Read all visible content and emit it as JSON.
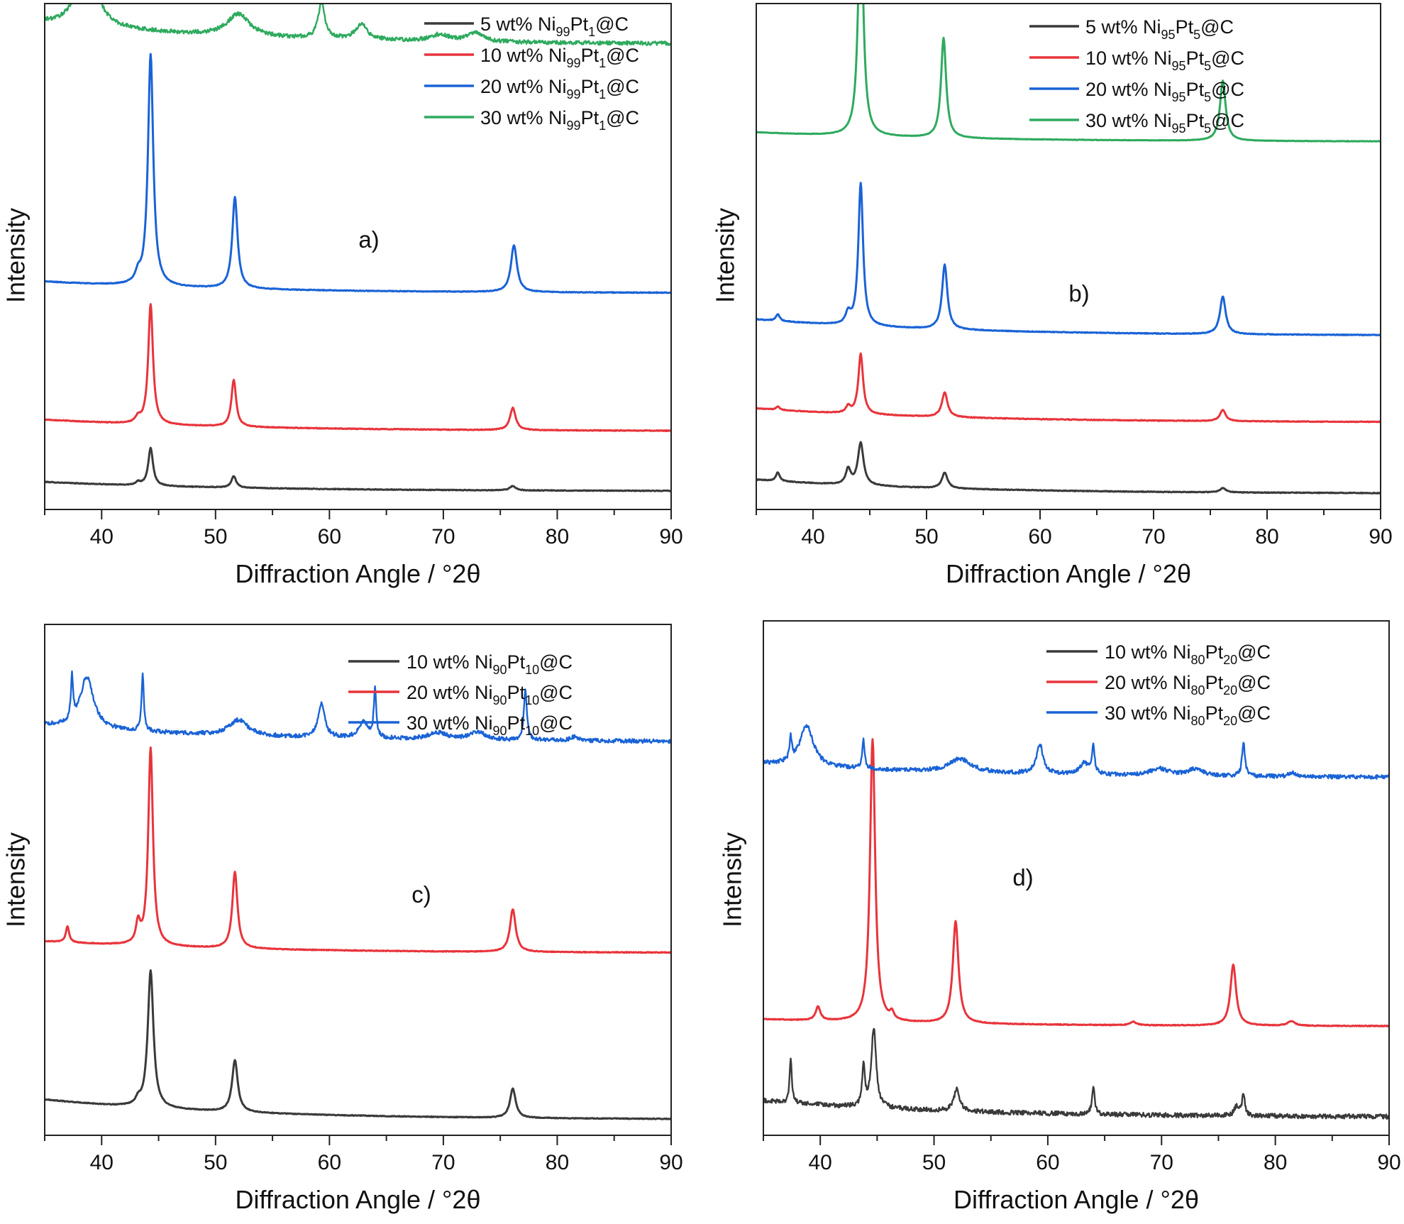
{
  "figure": {
    "colors": {
      "black": "#3a3a3a",
      "red": "#e8343b",
      "blue": "#1a63d6",
      "green": "#2eaa5e"
    },
    "panels": [
      {
        "label": "a)",
        "xlabel": "Diffraction Angle  /  °2θ",
        "ylabel": "Intensity",
        "legend": [
          {
            "wt": "5 wt%",
            "a": "Ni",
            "a_sub": "99",
            "b": "Pt",
            "b_sub": "1",
            "tail": "@C",
            "color": "#3a3a3a"
          },
          {
            "wt": "10 wt%",
            "a": "Ni",
            "a_sub": "99",
            "b": "Pt",
            "b_sub": "1",
            "tail": "@C",
            "color": "#e8343b"
          },
          {
            "wt": "20 wt%",
            "a": "Ni",
            "a_sub": "99",
            "b": "Pt",
            "b_sub": "1",
            "tail": "@C",
            "color": "#1a63d6"
          },
          {
            "wt": "30 wt%",
            "a": "Ni",
            "a_sub": "99",
            "b": "Pt",
            "b_sub": "1",
            "tail": "@C",
            "color": "#2eaa5e"
          }
        ]
      },
      {
        "label": "b)",
        "xlabel": "Diffraction Angle  /  °2θ",
        "ylabel": "Intensity",
        "legend": [
          {
            "wt": "5 wt%",
            "a": "Ni",
            "a_sub": "95",
            "b": "Pt",
            "b_sub": "5",
            "tail": "@C",
            "color": "#3a3a3a"
          },
          {
            "wt": "10 wt%",
            "a": "Ni",
            "a_sub": "95",
            "b": "Pt",
            "b_sub": "5",
            "tail": "@C",
            "color": "#e8343b"
          },
          {
            "wt": "20 wt%",
            "a": "Ni",
            "a_sub": "95",
            "b": "Pt",
            "b_sub": "5",
            "tail": "@C",
            "color": "#1a63d6"
          },
          {
            "wt": "30 wt%",
            "a": "Ni",
            "a_sub": "95",
            "b": "Pt",
            "b_sub": "5",
            "tail": "@C",
            "color": "#2eaa5e"
          }
        ]
      },
      {
        "label": "c)",
        "xlabel": "Diffraction Angle  /  °2θ",
        "ylabel": "Intensity",
        "legend": [
          {
            "wt": "10 wt%",
            "a": "Ni",
            "a_sub": "90",
            "b": "Pt",
            "b_sub": "10",
            "tail": "@C",
            "color": "#3a3a3a"
          },
          {
            "wt": "20 wt%",
            "a": "Ni",
            "a_sub": "90",
            "b": "Pt",
            "b_sub": "10",
            "tail": "@C",
            "color": "#e8343b"
          },
          {
            "wt": "30 wt%",
            "a": "Ni",
            "a_sub": "90",
            "b": "Pt",
            "b_sub": "10",
            "tail": "@C",
            "color": "#1a63d6"
          }
        ]
      },
      {
        "label": "d)",
        "xlabel": "Diffraction Angle  /  °2θ",
        "ylabel": "Intensity",
        "legend": [
          {
            "wt": "10 wt%",
            "a": "Ni",
            "a_sub": "80",
            "b": "Pt",
            "b_sub": "20",
            "tail": "@C",
            "color": "#3a3a3a"
          },
          {
            "wt": "20 wt%",
            "a": "Ni",
            "a_sub": "80",
            "b": "Pt",
            "b_sub": "20",
            "tail": "@C",
            "color": "#e8343b"
          },
          {
            "wt": "30 wt%",
            "a": "Ni",
            "a_sub": "80",
            "b": "Pt",
            "b_sub": "20",
            "tail": "@C",
            "color": "#1a63d6"
          }
        ]
      }
    ]
  },
  "chart_data": [
    {
      "type": "line",
      "panel": "a)",
      "xlabel": "Diffraction Angle  /  °2θ",
      "ylabel": "Intensity",
      "xlim": [
        35,
        90
      ],
      "ylim": [
        0,
        100
      ],
      "xticks": [
        40,
        50,
        60,
        70,
        80,
        90
      ],
      "y_tick_labels": false,
      "grid": false,
      "legend_position": "top-right",
      "series": [
        {
          "name": "5 wt% Ni99Pt1@C",
          "color": "#3a3a3a",
          "baseline_start": 3.0,
          "baseline_end": 1.0,
          "noise": 0.08,
          "peaks": [
            {
              "x": 43.2,
              "h": 0.7,
              "w": 0.25
            },
            {
              "x": 44.3,
              "h": 8.5,
              "w": 0.25
            },
            {
              "x": 51.6,
              "h": 2.6,
              "w": 0.25
            },
            {
              "x": 76.1,
              "h": 1.0,
              "w": 0.3
            }
          ]
        },
        {
          "name": "10 wt% Ni99Pt1@C",
          "color": "#e8343b",
          "baseline_start": 17.0,
          "baseline_end": 14.5,
          "noise": 0.08,
          "peaks": [
            {
              "x": 43.2,
              "h": 1.2,
              "w": 0.25
            },
            {
              "x": 44.3,
              "h": 27.0,
              "w": 0.25
            },
            {
              "x": 51.6,
              "h": 10.5,
              "w": 0.25
            },
            {
              "x": 76.1,
              "h": 5.0,
              "w": 0.3
            }
          ]
        },
        {
          "name": "20 wt% Ni99Pt1@C",
          "color": "#1a63d6",
          "baseline_start": 48.0,
          "baseline_end": 45.5,
          "noise": 0.08,
          "peaks": [
            {
              "x": 43.2,
              "h": 2.0,
              "w": 0.25
            },
            {
              "x": 44.3,
              "h": 52.0,
              "w": 0.28
            },
            {
              "x": 51.7,
              "h": 20.5,
              "w": 0.28
            },
            {
              "x": 76.2,
              "h": 10.5,
              "w": 0.32
            }
          ]
        },
        {
          "name": "30 wt% Ni99Pt1@C",
          "color": "#2eaa5e",
          "baseline_start": 106.0,
          "baseline_end": 101.5,
          "noise": 0.45,
          "peaks": [
            {
              "x": 38.7,
              "h": 17.0,
              "w": 0.9
            },
            {
              "x": 52.0,
              "h": 5.0,
              "w": 1.2
            },
            {
              "x": 59.3,
              "h": 8.0,
              "w": 0.35
            },
            {
              "x": 62.8,
              "h": 3.5,
              "w": 0.6
            },
            {
              "x": 69.7,
              "h": 1.5,
              "w": 1.0
            },
            {
              "x": 72.8,
              "h": 2.0,
              "w": 0.8
            }
          ]
        }
      ]
    },
    {
      "type": "line",
      "panel": "b)",
      "xlabel": "Diffraction Angle  /  °2θ",
      "ylabel": "Intensity",
      "xlim": [
        35,
        90
      ],
      "ylim": [
        0,
        100
      ],
      "xticks": [
        40,
        50,
        60,
        70,
        80,
        90
      ],
      "y_tick_labels": false,
      "grid": false,
      "legend_position": "top-right",
      "series": [
        {
          "name": "5 wt% Ni95Pt5@C",
          "color": "#3a3a3a",
          "baseline_start": 3.5,
          "baseline_end": 0.5,
          "noise": 0.08,
          "peaks": [
            {
              "x": 36.9,
              "h": 2.0,
              "w": 0.2
            },
            {
              "x": 43.1,
              "h": 3.5,
              "w": 0.25
            },
            {
              "x": 44.2,
              "h": 9.5,
              "w": 0.3
            },
            {
              "x": 51.6,
              "h": 3.5,
              "w": 0.3
            },
            {
              "x": 76.1,
              "h": 1.0,
              "w": 0.3
            }
          ]
        },
        {
          "name": "10 wt% Ni95Pt5@C",
          "color": "#e8343b",
          "baseline_start": 19.5,
          "baseline_end": 16.5,
          "noise": 0.08,
          "peaks": [
            {
              "x": 36.9,
              "h": 0.8,
              "w": 0.2
            },
            {
              "x": 43.1,
              "h": 1.5,
              "w": 0.25
            },
            {
              "x": 44.2,
              "h": 13.5,
              "w": 0.25
            },
            {
              "x": 51.6,
              "h": 5.5,
              "w": 0.3
            },
            {
              "x": 76.1,
              "h": 2.5,
              "w": 0.3
            }
          ]
        },
        {
          "name": "20 wt% Ni95Pt5@C",
          "color": "#1a63d6",
          "baseline_start": 39.5,
          "baseline_end": 36.0,
          "noise": 0.08,
          "peaks": [
            {
              "x": 36.9,
              "h": 1.5,
              "w": 0.2
            },
            {
              "x": 43.1,
              "h": 2.5,
              "w": 0.25
            },
            {
              "x": 44.2,
              "h": 32.0,
              "w": 0.25
            },
            {
              "x": 51.6,
              "h": 14.5,
              "w": 0.28
            },
            {
              "x": 76.1,
              "h": 8.5,
              "w": 0.3
            }
          ]
        },
        {
          "name": "30 wt% Ni95Pt5@C",
          "color": "#2eaa5e",
          "baseline_start": 81.5,
          "baseline_end": 79.5,
          "noise": 0.05,
          "peaks": [
            {
              "x": 44.2,
              "h": 52.0,
              "w": 0.27
            },
            {
              "x": 51.5,
              "h": 22.5,
              "w": 0.27
            },
            {
              "x": 76.1,
              "h": 13.5,
              "w": 0.3
            }
          ]
        }
      ]
    },
    {
      "type": "line",
      "panel": "c)",
      "xlabel": "Diffraction Angle  /  °2θ",
      "ylabel": "Intensity",
      "xlim": [
        35,
        90
      ],
      "ylim": [
        0,
        100
      ],
      "xticks": [
        40,
        50,
        60,
        70,
        80,
        90
      ],
      "y_tick_labels": false,
      "grid": false,
      "legend_position": "top-right",
      "series": [
        {
          "name": "10 wt% Ni90Pt10@C",
          "color": "#3a3a3a",
          "baseline_start": 4.8,
          "baseline_end": 0.5,
          "noise": 0.08,
          "peaks": [
            {
              "x": 43.2,
              "h": 1.2,
              "w": 0.25
            },
            {
              "x": 44.3,
              "h": 30.5,
              "w": 0.3
            },
            {
              "x": 51.7,
              "h": 11.5,
              "w": 0.3
            },
            {
              "x": 76.1,
              "h": 6.5,
              "w": 0.3
            }
          ]
        },
        {
          "name": "20 wt% Ni90Pt10@C",
          "color": "#e8343b",
          "baseline_start": 40.0,
          "baseline_end": 37.5,
          "noise": 0.08,
          "peaks": [
            {
              "x": 37.0,
              "h": 3.5,
              "w": 0.18
            },
            {
              "x": 43.2,
              "h": 4.5,
              "w": 0.22
            },
            {
              "x": 44.3,
              "h": 44.0,
              "w": 0.25
            },
            {
              "x": 51.7,
              "h": 17.0,
              "w": 0.27
            },
            {
              "x": 76.1,
              "h": 9.5,
              "w": 0.3
            }
          ]
        },
        {
          "name": "30 wt% Ni90Pt10@C",
          "color": "#1a63d6",
          "baseline_start": 88.0,
          "baseline_end": 84.5,
          "noise": 0.45,
          "peaks": [
            {
              "x": 37.4,
              "h": 9.5,
              "w": 0.12
            },
            {
              "x": 38.7,
              "h": 11.5,
              "w": 0.7
            },
            {
              "x": 43.6,
              "h": 12.5,
              "w": 0.12
            },
            {
              "x": 52.0,
              "h": 3.5,
              "w": 1.0
            },
            {
              "x": 59.3,
              "h": 7.5,
              "w": 0.35
            },
            {
              "x": 63.0,
              "h": 3.5,
              "w": 0.5
            },
            {
              "x": 64.0,
              "h": 10.5,
              "w": 0.13
            },
            {
              "x": 69.5,
              "h": 1.5,
              "w": 1.0
            },
            {
              "x": 73.0,
              "h": 1.8,
              "w": 0.8
            },
            {
              "x": 77.2,
              "h": 11.5,
              "w": 0.15
            },
            {
              "x": 81.5,
              "h": 0.9,
              "w": 0.4
            }
          ]
        }
      ]
    },
    {
      "type": "line",
      "panel": "d)",
      "xlabel": "Diffraction Angle  /  °2θ",
      "ylabel": "Intensity",
      "xlim": [
        35,
        90
      ],
      "ylim": [
        0,
        100
      ],
      "xticks": [
        40,
        50,
        60,
        70,
        80,
        90
      ],
      "y_tick_labels": false,
      "grid": false,
      "legend_position": "top-right",
      "series": [
        {
          "name": "10 wt% Ni80Pt20@C",
          "color": "#3a3a3a",
          "baseline_start": 4.5,
          "baseline_end": 1.0,
          "noise": 0.5,
          "peaks": [
            {
              "x": 37.4,
              "h": 9.5,
              "w": 0.12
            },
            {
              "x": 43.8,
              "h": 9.0,
              "w": 0.14
            },
            {
              "x": 44.7,
              "h": 17.5,
              "w": 0.25
            },
            {
              "x": 52.0,
              "h": 5.0,
              "w": 0.3
            },
            {
              "x": 64.0,
              "h": 6.5,
              "w": 0.13
            },
            {
              "x": 76.6,
              "h": 2.0,
              "w": 0.25
            },
            {
              "x": 77.2,
              "h": 4.5,
              "w": 0.15
            }
          ]
        },
        {
          "name": "20 wt% Ni80Pt20@C",
          "color": "#e8343b",
          "baseline_start": 22.5,
          "baseline_end": 21.0,
          "noise": 0.08,
          "peaks": [
            {
              "x": 39.8,
              "h": 3.0,
              "w": 0.25
            },
            {
              "x": 44.6,
              "h": 62.5,
              "w": 0.27
            },
            {
              "x": 46.3,
              "h": 1.5,
              "w": 0.2
            },
            {
              "x": 51.9,
              "h": 22.5,
              "w": 0.3
            },
            {
              "x": 67.5,
              "h": 0.8,
              "w": 0.3
            },
            {
              "x": 76.3,
              "h": 13.5,
              "w": 0.3
            },
            {
              "x": 81.4,
              "h": 1.0,
              "w": 0.4
            }
          ]
        },
        {
          "name": "30 wt% Ni80Pt20@C",
          "color": "#1a63d6",
          "baseline_start": 79.0,
          "baseline_end": 76.0,
          "noise": 0.45,
          "peaks": [
            {
              "x": 37.4,
              "h": 5.0,
              "w": 0.12
            },
            {
              "x": 38.8,
              "h": 9.0,
              "w": 0.7
            },
            {
              "x": 43.8,
              "h": 6.5,
              "w": 0.12
            },
            {
              "x": 52.3,
              "h": 3.0,
              "w": 1.2
            },
            {
              "x": 59.3,
              "h": 6.5,
              "w": 0.35
            },
            {
              "x": 63.2,
              "h": 2.5,
              "w": 0.5
            },
            {
              "x": 64.0,
              "h": 6.0,
              "w": 0.13
            },
            {
              "x": 69.8,
              "h": 1.5,
              "w": 1.0
            },
            {
              "x": 73.0,
              "h": 1.5,
              "w": 0.8
            },
            {
              "x": 77.2,
              "h": 7.5,
              "w": 0.15
            },
            {
              "x": 81.5,
              "h": 0.8,
              "w": 0.4
            }
          ]
        }
      ]
    }
  ]
}
